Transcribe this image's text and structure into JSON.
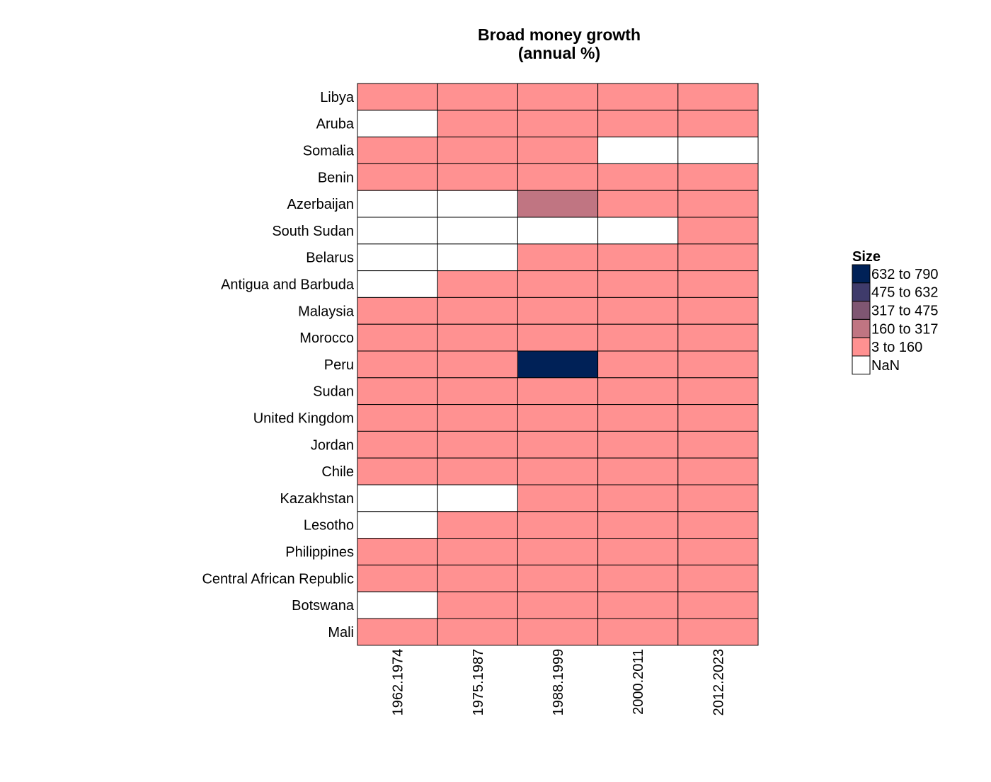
{
  "chart_data": {
    "type": "heatmap",
    "title": "Broad money growth\n(annual %)",
    "rows": [
      "Libya",
      "Aruba",
      "Somalia",
      "Benin",
      "Azerbaijan",
      "South Sudan",
      "Belarus",
      "Antigua and Barbuda",
      "Malaysia",
      "Morocco",
      "Peru",
      "Sudan",
      "United Kingdom",
      "Jordan",
      "Chile",
      "Kazakhstan",
      "Lesotho",
      "Philippines",
      "Central African Republic",
      "Botswana",
      "Mali"
    ],
    "columns": [
      "1962.1974",
      "1975.1987",
      "1988.1999",
      "2000.2011",
      "2012.2023"
    ],
    "bins": [
      "3  to  160",
      "160  to  317",
      "317  to  475",
      "475  to  632",
      "632  to  790",
      "NaN"
    ],
    "cells": [
      [
        "3  to  160",
        "3  to  160",
        "3  to  160",
        "3  to  160",
        "3  to  160"
      ],
      [
        "NaN",
        "3  to  160",
        "3  to  160",
        "3  to  160",
        "3  to  160"
      ],
      [
        "3  to  160",
        "3  to  160",
        "3  to  160",
        "NaN",
        "NaN"
      ],
      [
        "3  to  160",
        "3  to  160",
        "3  to  160",
        "3  to  160",
        "3  to  160"
      ],
      [
        "NaN",
        "NaN",
        "160  to  317",
        "3  to  160",
        "3  to  160"
      ],
      [
        "NaN",
        "NaN",
        "NaN",
        "NaN",
        "3  to  160"
      ],
      [
        "NaN",
        "NaN",
        "3  to  160",
        "3  to  160",
        "3  to  160"
      ],
      [
        "NaN",
        "3  to  160",
        "3  to  160",
        "3  to  160",
        "3  to  160"
      ],
      [
        "3  to  160",
        "3  to  160",
        "3  to  160",
        "3  to  160",
        "3  to  160"
      ],
      [
        "3  to  160",
        "3  to  160",
        "3  to  160",
        "3  to  160",
        "3  to  160"
      ],
      [
        "3  to  160",
        "3  to  160",
        "632  to  790",
        "3  to  160",
        "3  to  160"
      ],
      [
        "3  to  160",
        "3  to  160",
        "3  to  160",
        "3  to  160",
        "3  to  160"
      ],
      [
        "3  to  160",
        "3  to  160",
        "3  to  160",
        "3  to  160",
        "3  to  160"
      ],
      [
        "3  to  160",
        "3  to  160",
        "3  to  160",
        "3  to  160",
        "3  to  160"
      ],
      [
        "3  to  160",
        "3  to  160",
        "3  to  160",
        "3  to  160",
        "3  to  160"
      ],
      [
        "NaN",
        "NaN",
        "3  to  160",
        "3  to  160",
        "3  to  160"
      ],
      [
        "NaN",
        "3  to  160",
        "3  to  160",
        "3  to  160",
        "3  to  160"
      ],
      [
        "3  to  160",
        "3  to  160",
        "3  to  160",
        "3  to  160",
        "3  to  160"
      ],
      [
        "3  to  160",
        "3  to  160",
        "3  to  160",
        "3  to  160",
        "3  to  160"
      ],
      [
        "NaN",
        "3  to  160",
        "3  to  160",
        "3  to  160",
        "3  to  160"
      ],
      [
        "3  to  160",
        "3  to  160",
        "3  to  160",
        "3  to  160",
        "3  to  160"
      ]
    ],
    "legend": {
      "title": "Size",
      "placement": "right",
      "items": [
        {
          "label": "632  to  790",
          "color": "#002157"
        },
        {
          "label": "475  to  632",
          "color": "#3f3b6b"
        },
        {
          "label": "317  to  475",
          "color": "#7f5672"
        },
        {
          "label": "160  to  317",
          "color": "#c07582"
        },
        {
          "label": "3  to  160",
          "color": "#ff9191"
        },
        {
          "label": "NaN",
          "color": "#ffffff"
        }
      ]
    },
    "grid": false
  }
}
